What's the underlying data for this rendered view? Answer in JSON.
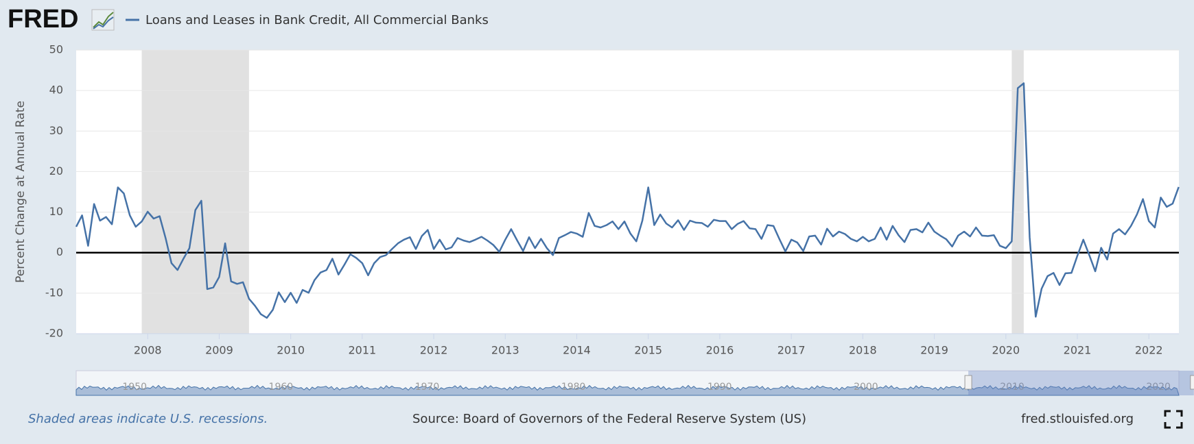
{
  "brand": "FRED",
  "footer": {
    "note": "Shaded areas indicate U.S. recessions.",
    "source": "Source: Board of Governors of the Federal Reserve System (US)",
    "url": "fred.stlouisfed.org"
  },
  "navigator": {
    "xlim": [
      1946,
      2021.4
    ],
    "xticks": [
      1950,
      1960,
      1970,
      1980,
      1990,
      2000,
      2010,
      2020
    ]
  },
  "chart_data": {
    "type": "line",
    "title": "Loans and Leases in Bank Credit, All Commercial Banks",
    "y_label": "Percent Change at Annual Rate",
    "ylim": [
      -20,
      50
    ],
    "yticks": [
      -20,
      -10,
      0,
      10,
      20,
      30,
      40,
      50
    ],
    "xlim": [
      2007,
      2022.42
    ],
    "xticks": [
      2008,
      2009,
      2010,
      2011,
      2012,
      2013,
      2014,
      2015,
      2016,
      2017,
      2018,
      2019,
      2020,
      2021,
      2022
    ],
    "grid": true,
    "recessions": [
      [
        2007.917,
        2009.417
      ],
      [
        2020.083,
        2020.25
      ]
    ],
    "x": [
      2007,
      2007.083,
      2007.167,
      2007.25,
      2007.333,
      2007.417,
      2007.5,
      2007.583,
      2007.667,
      2007.75,
      2007.833,
      2007.917,
      2008,
      2008.083,
      2008.167,
      2008.25,
      2008.333,
      2008.417,
      2008.5,
      2008.583,
      2008.667,
      2008.75,
      2008.833,
      2008.917,
      2009,
      2009.083,
      2009.167,
      2009.25,
      2009.333,
      2009.417,
      2009.5,
      2009.583,
      2009.667,
      2009.75,
      2009.833,
      2009.917,
      2010,
      2010.083,
      2010.167,
      2010.25,
      2010.333,
      2010.417,
      2010.5,
      2010.583,
      2010.667,
      2010.75,
      2010.833,
      2010.917,
      2011,
      2011.083,
      2011.167,
      2011.25,
      2011.333,
      2011.417,
      2011.5,
      2011.583,
      2011.667,
      2011.75,
      2011.833,
      2011.917,
      2012,
      2012.083,
      2012.167,
      2012.25,
      2012.333,
      2012.417,
      2012.5,
      2012.583,
      2012.667,
      2012.75,
      2012.833,
      2012.917,
      2013,
      2013.083,
      2013.167,
      2013.25,
      2013.333,
      2013.417,
      2013.5,
      2013.583,
      2013.667,
      2013.75,
      2013.833,
      2013.917,
      2014,
      2014.083,
      2014.167,
      2014.25,
      2014.333,
      2014.417,
      2014.5,
      2014.583,
      2014.667,
      2014.75,
      2014.833,
      2014.917,
      2015,
      2015.083,
      2015.167,
      2015.25,
      2015.333,
      2015.417,
      2015.5,
      2015.583,
      2015.667,
      2015.75,
      2015.833,
      2015.917,
      2016,
      2016.083,
      2016.167,
      2016.25,
      2016.333,
      2016.417,
      2016.5,
      2016.583,
      2016.667,
      2016.75,
      2016.833,
      2016.917,
      2017,
      2017.083,
      2017.167,
      2017.25,
      2017.333,
      2017.417,
      2017.5,
      2017.583,
      2017.667,
      2017.75,
      2017.833,
      2017.917,
      2018,
      2018.083,
      2018.167,
      2018.25,
      2018.333,
      2018.417,
      2018.5,
      2018.583,
      2018.667,
      2018.75,
      2018.833,
      2018.917,
      2019,
      2019.083,
      2019.167,
      2019.25,
      2019.333,
      2019.417,
      2019.5,
      2019.583,
      2019.667,
      2019.75,
      2019.833,
      2019.917,
      2020,
      2020.083,
      2020.167,
      2020.25,
      2020.333,
      2020.417,
      2020.5,
      2020.583,
      2020.667,
      2020.75,
      2020.833,
      2020.917,
      2021,
      2021.083,
      2021.167,
      2021.25,
      2021.333,
      2021.417,
      2021.5,
      2021.583,
      2021.667,
      2021.75,
      2021.833,
      2021.917,
      2022,
      2022.083,
      2022.167,
      2022.25,
      2022.333,
      2022.417
    ],
    "series": [
      {
        "name": "Loans and Leases in Bank Credit, All Commercial Banks",
        "color": "#4572a7",
        "values": [
          6.4,
          9.2,
          1.7,
          12,
          7.9,
          8.8,
          7,
          16.1,
          14.6,
          9.2,
          6.4,
          7.7,
          10.1,
          8.4,
          9,
          3.6,
          -2.6,
          -4.3,
          -1.5,
          1.1,
          10.5,
          12.8,
          -9,
          -8.6,
          -6,
          2.3,
          -7.1,
          -7.7,
          -7.3,
          -11.4,
          -13.1,
          -15.2,
          -16.1,
          -14.1,
          -9.8,
          -12.2,
          -9.9,
          -12.4,
          -9.2,
          -9.9,
          -6.8,
          -4.9,
          -4.3,
          -1.5,
          -5.4,
          -3,
          -0.4,
          -1.3,
          -2.6,
          -5.6,
          -2.6,
          -1.1,
          -0.6,
          0.9,
          2.3,
          3.2,
          3.8,
          0.9,
          4.1,
          5.6,
          0.9,
          3.2,
          0.8,
          1.3,
          3.6,
          3,
          2.6,
          3.2,
          3.9,
          3,
          1.9,
          0.2,
          3.2,
          5.8,
          3,
          0.4,
          3.8,
          1.1,
          3.4,
          1.1,
          -0.6,
          3.6,
          4.3,
          5.1,
          4.7,
          3.9,
          9.8,
          6.6,
          6.2,
          6.8,
          7.7,
          5.8,
          7.7,
          4.7,
          2.8,
          7.9,
          16.1,
          6.8,
          9.4,
          7.2,
          6.2,
          8,
          5.6,
          7.9,
          7.4,
          7.3,
          6.4,
          8.1,
          7.8,
          7.8,
          5.8,
          7.1,
          7.8,
          6,
          5.8,
          3.4,
          6.8,
          6.6,
          3.4,
          0.3,
          3.2,
          2.5,
          0.4,
          4,
          4.2,
          2,
          5.9,
          4,
          5.2,
          4.6,
          3.4,
          2.8,
          3.9,
          2.8,
          3.4,
          6.2,
          3.2,
          6.6,
          4.3,
          2.6,
          5.6,
          5.8,
          5,
          7.4,
          5.2,
          4.2,
          3.3,
          1.5,
          4.2,
          5.2,
          4,
          6.2,
          4.2,
          4.1,
          4.3,
          1.7,
          1.1,
          2.8,
          40.6,
          41.8,
          3.8,
          -15.8,
          -8.9,
          -5.8,
          -5,
          -8,
          -5.1,
          -5,
          -0.8,
          3.2,
          -0.6,
          -4.6,
          1.2,
          -1.7,
          4.7,
          5.8,
          4.5,
          6.6,
          9.4,
          13.2,
          7.8,
          6.2,
          13.6,
          11.3,
          12.1,
          16.2
        ]
      }
    ]
  }
}
